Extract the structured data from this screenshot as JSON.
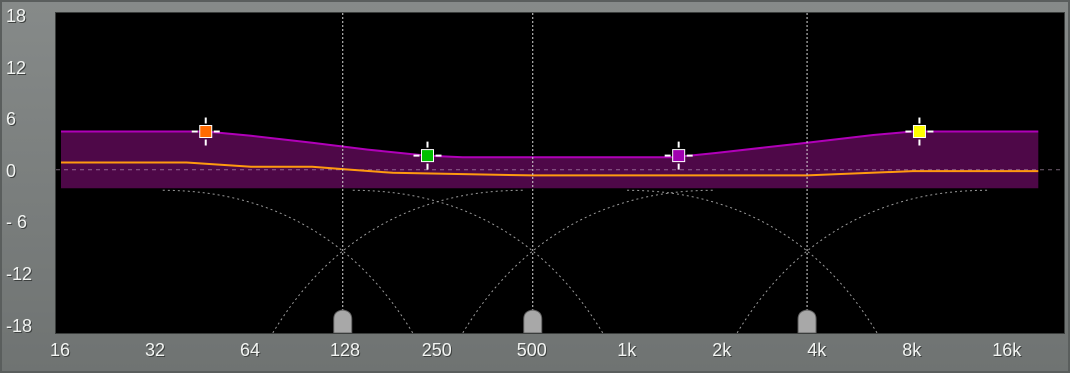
{
  "y_ticks": [
    {
      "value": 18,
      "label": "18"
    },
    {
      "value": 12,
      "label": "12"
    },
    {
      "value": 6,
      "label": "6"
    },
    {
      "value": 0,
      "label": "0"
    },
    {
      "value": -6,
      "label": "- 6"
    },
    {
      "value": -12,
      "label": "-12"
    },
    {
      "value": -18,
      "label": "-18"
    }
  ],
  "x_ticks": [
    {
      "freq": 16,
      "label": "16"
    },
    {
      "freq": 32,
      "label": "32"
    },
    {
      "freq": 64,
      "label": "64"
    },
    {
      "freq": 128,
      "label": "128"
    },
    {
      "freq": 250,
      "label": "250"
    },
    {
      "freq": 500,
      "label": "500"
    },
    {
      "freq": 1000,
      "label": "1k"
    },
    {
      "freq": 2000,
      "label": "2k"
    },
    {
      "freq": 4000,
      "label": "4k"
    },
    {
      "freq": 8000,
      "label": "8k"
    },
    {
      "freq": 16000,
      "label": "16k"
    }
  ],
  "crossover_freqs": [
    125,
    500,
    3700
  ],
  "band_handles": [
    {
      "name": "orange",
      "freq": 46,
      "gain": 4.8,
      "color": "#ff6a00"
    },
    {
      "name": "green",
      "freq": 232,
      "gain": 2.0,
      "color": "#00c000"
    },
    {
      "name": "purple",
      "freq": 1450,
      "gain": 2.0,
      "color": "#a000b0"
    },
    {
      "name": "yellow",
      "freq": 8400,
      "gain": 4.8,
      "color": "#ffff00"
    }
  ],
  "colors": {
    "envelope_fill": "#4e0848",
    "envelope_line": "#b000b8",
    "response_line": "#ff9a10",
    "grid_dotted": "#d8d8d8"
  },
  "chart_data": {
    "type": "line",
    "x_scale": "log",
    "xlim": [
      16,
      20000
    ],
    "ylim": [
      -18,
      18
    ],
    "series": [
      {
        "role": "upper-envelope",
        "x": [
          16,
          46,
          64,
          100,
          150,
          230,
          300,
          600,
          1400,
          1900,
          3500,
          6000,
          8000,
          20000
        ],
        "y": [
          4.8,
          4.8,
          4.3,
          3.5,
          2.7,
          2.0,
          1.8,
          1.8,
          1.8,
          2.3,
          3.4,
          4.4,
          4.8,
          4.8
        ]
      },
      {
        "role": "lower-envelope",
        "x": [
          16,
          20000
        ],
        "y": [
          -1.8,
          -1.8
        ]
      },
      {
        "role": "response",
        "x": [
          16,
          40,
          64,
          100,
          128,
          180,
          500,
          1000,
          3700,
          8000,
          20000
        ],
        "y": [
          1.2,
          1.2,
          0.7,
          0.7,
          0.4,
          0.0,
          -0.3,
          -0.3,
          -0.3,
          0.2,
          0.2
        ]
      }
    ]
  }
}
